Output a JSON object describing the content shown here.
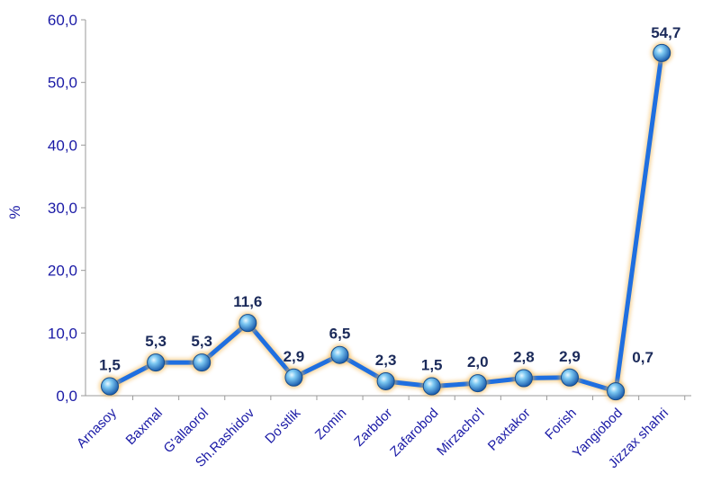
{
  "chart_data": {
    "type": "line",
    "title": "",
    "xlabel": "",
    "ylabel": "%",
    "ylim": [
      0,
      60
    ],
    "yticks": [
      "0,0",
      "10,0",
      "20,0",
      "30,0",
      "40,0",
      "50,0",
      "60,0"
    ],
    "grid": false,
    "categories": [
      "Arnasoy",
      "Baxmal",
      "G'allaorol",
      "Sh.Rashidov",
      "Do'stlik",
      "Zomin",
      "Zarbdor",
      "Zafarobod",
      "Mirzacho'l",
      "Paxtakor",
      "Forish",
      "Yangiobod",
      "Jizzax shahri"
    ],
    "series": [
      {
        "values": [
          1.5,
          5.3,
          5.3,
          11.6,
          2.9,
          6.5,
          2.3,
          1.5,
          2.0,
          2.8,
          2.9,
          0.7,
          54.7
        ],
        "labels": [
          "1,5",
          "5,3",
          "5,3",
          "11,6",
          "2,9",
          "6,5",
          "2,3",
          "1,5",
          "2,0",
          "2,8",
          "2,9",
          "0,7",
          "54,7"
        ]
      }
    ],
    "colors": {
      "line": "#1f6fe0",
      "line_glow": "#f2b34a",
      "marker": "#2a8fd6",
      "axis_text": "#1a1aa6",
      "label": "#1b2a5a",
      "highlight_label": "#d62020"
    },
    "highlight_index": 11
  }
}
